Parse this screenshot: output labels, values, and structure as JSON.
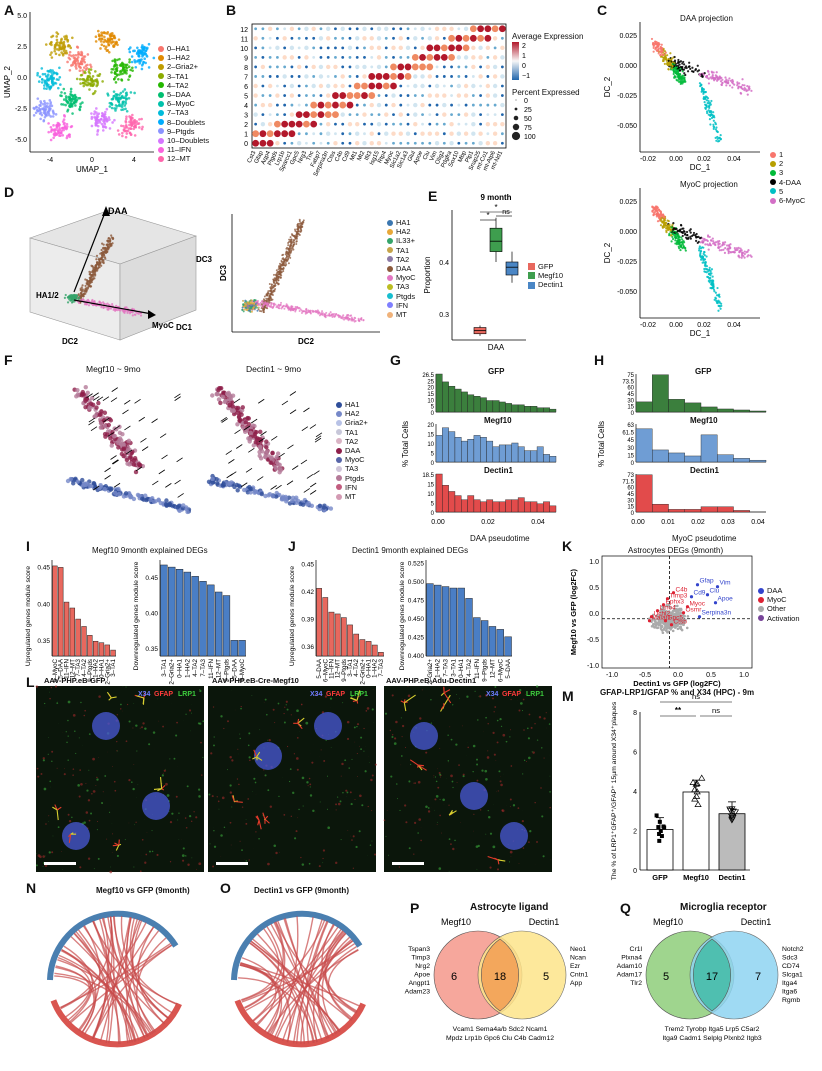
{
  "panels": {
    "A": {
      "label": "A",
      "xlabel": "UMAP_1",
      "ylabel": "UMAP_2",
      "xticks": [
        "-4",
        "0",
        "4"
      ],
      "yticks": [
        "5.0",
        "2.5",
        "0.0",
        "-2.5",
        "-5.0"
      ],
      "legend": [
        "0–HA1",
        "1–HA2",
        "2–Gria2+",
        "3–TA1",
        "4–TA2",
        "5–DAA",
        "6–MyoC",
        "7–TA3",
        "8–Doublets",
        "9–Ptgds",
        "10–Doublets",
        "11–IFN",
        "12–MT"
      ],
      "colors": [
        "#f8766d",
        "#e18a00",
        "#be9c00",
        "#8cab00",
        "#24b700",
        "#00be70",
        "#00c1ab",
        "#00bbda",
        "#00acfc",
        "#8b93ff",
        "#d575fe",
        "#f962dd",
        "#ff65ac"
      ]
    },
    "B": {
      "label": "B",
      "yticks": [
        "12",
        "11",
        "10",
        "9",
        "8",
        "7",
        "6",
        "5",
        "4",
        "3",
        "2",
        "1",
        "0"
      ],
      "genes": [
        "Cst3",
        "Gfap",
        "Aqp4",
        "Ptgds",
        "Lrp1b",
        "Sparcc1",
        "Gpc5",
        "Nrg3",
        "Tnc",
        "Fabp7",
        "Serpina3n",
        "Ctss",
        "C4b",
        "Cd9",
        "Mt1",
        "Mt2",
        "Ifit3",
        "Isg15",
        "Rtp4",
        "Myoc",
        "Slc1a2",
        "Slc1a3",
        "Glul",
        "Apoe",
        "Clu",
        "Vim",
        "Olig2",
        "Pdgfra",
        "Sox10",
        "Mbp",
        "Plp1",
        "Snap25",
        "mt-Co1",
        "mt-Atp6",
        "mt-Nd1"
      ],
      "legend_title1": "Average Expression",
      "scale_ticks": [
        "2",
        "1",
        "0",
        "−1"
      ],
      "legend_title2": "Percent Expressed",
      "pct": [
        "0",
        "25",
        "50",
        "75",
        "100"
      ]
    },
    "C": {
      "label": "C",
      "title1": "DAA projection",
      "title2": "MyoC projection",
      "xlabel": "DC_1",
      "ylabel": "DC_2",
      "xticks": [
        "-0.02",
        "0.00",
        "0.02",
        "0.04"
      ],
      "yticks": [
        "0.025",
        "0.000",
        "-0.025",
        "-0.050",
        "-0.075"
      ],
      "legend": [
        "1",
        "2",
        "3",
        "4-DAA",
        "5",
        "6-MyoC"
      ],
      "colors": [
        "#f8766d",
        "#b79f00",
        "#00ba38",
        "#000000",
        "#00bfc4",
        "#d36fc6"
      ]
    },
    "D": {
      "label": "D",
      "axis_daa": "DAA",
      "axis_ha": "HA1/2",
      "axis_myoc": "MyoC",
      "dc1": "DC1",
      "dc2": "DC2",
      "dc3": "DC3",
      "xlabel2": "DC2",
      "ylabel2": "DC3",
      "legend": [
        "HA1",
        "HA2",
        "IL33+",
        "TA1",
        "TA2",
        "DAA",
        "MyoC",
        "TA3",
        "Ptgds",
        "IFN",
        "MT"
      ],
      "colors": [
        "#3b77b0",
        "#e8a838",
        "#35a46a",
        "#c6a44a",
        "#8c7aa6",
        "#8c5a3c",
        "#e377c2",
        "#bcbd22",
        "#17becf",
        "#7f7fff",
        "#f0b27a"
      ]
    },
    "E": {
      "label": "E",
      "title": "9 month",
      "xlabel": "DAA",
      "ylabel": "Proportion",
      "yticks": [
        "0.4",
        "0.3"
      ],
      "sig": [
        "*",
        "*",
        "ns"
      ],
      "legend": [
        "GFP",
        "Megf10",
        "Dectin1"
      ],
      "colors": [
        "#e8685e",
        "#3e9e4e",
        "#4a86c5"
      ]
    },
    "F": {
      "label": "F",
      "title1": "Megf10 ~ 9mo",
      "title2": "Dectin1 ~ 9mo",
      "legend": [
        "HA1",
        "HA2",
        "Gria2+",
        "TA1",
        "TA2",
        "DAA",
        "MyoC",
        "TA3",
        "Ptgds",
        "IFN",
        "MT"
      ],
      "colors": [
        "#2f4e9a",
        "#7688c8",
        "#b8c2e6",
        "#c7c7d9",
        "#d9b3c4",
        "#8e1f4a",
        "#5765a8",
        "#cfc4d8",
        "#b47a98",
        "#c25c7f",
        "#d39ab3"
      ]
    },
    "G": {
      "label": "G",
      "title": "GFP",
      "t2": "Megf10",
      "t3": "Dectin1",
      "xlabel": "DAA pseudotime",
      "ylabel": "% Total Cells",
      "xticks": [
        "0.00",
        "0.02",
        "0.04"
      ],
      "ymax": [
        "26.5",
        "25",
        "20",
        "15",
        "10",
        "5",
        "0"
      ],
      "ymax2": [
        "20",
        "15",
        "10",
        "5",
        "0"
      ],
      "ymax3": [
        "18.5",
        "15",
        "10",
        "5",
        "0"
      ],
      "gfp": [
        26.5,
        21,
        18,
        16,
        14,
        12,
        11,
        10,
        8,
        8,
        7,
        6,
        5,
        5,
        4,
        4,
        3,
        3,
        2
      ],
      "megf10": [
        14,
        18,
        16,
        13,
        11,
        12,
        14,
        13,
        11,
        8,
        9,
        9,
        10,
        8,
        6,
        6,
        8,
        4,
        3
      ],
      "dectin1": [
        18.5,
        13,
        10,
        8,
        6,
        8,
        6,
        5,
        6,
        5,
        5,
        6,
        6,
        7,
        5,
        5,
        4,
        5,
        3
      ]
    },
    "H": {
      "label": "H",
      "title": "GFP",
      "t2": "Megf10",
      "t3": "Dectin1",
      "xlabel": "MyoC pseudotime",
      "ylabel": "% Total Cells",
      "xticks": [
        "0.00",
        "0.01",
        "0.02",
        "0.03",
        "0.04"
      ],
      "yticks1": [
        "75",
        "73.5",
        "60",
        "45",
        "30",
        "15",
        "0"
      ],
      "yticks2": [
        "63",
        "61.5",
        "45",
        "30",
        "15",
        "0"
      ],
      "yticks3": [
        "73",
        "71.5",
        "60",
        "45",
        "30",
        "15",
        "0"
      ],
      "gfp": [
        20,
        73.5,
        25,
        18,
        10,
        6,
        4,
        2
      ],
      "megf10": [
        55,
        20,
        15,
        10,
        45,
        12,
        6,
        3
      ],
      "dectin1": [
        71.5,
        15,
        5,
        5,
        10,
        10,
        3,
        0
      ]
    },
    "I": {
      "label": "I",
      "title": "Megf10 9month explained DEGs",
      "ylabel1": "Upregulated genes module score",
      "ylabel2": "Downregulated genes module score",
      "cats1": [
        "6–MyoC",
        "5–DAA",
        "11–IFN",
        "12–MT",
        "7–TA3",
        "4–TA2",
        "9–Ptgds",
        "1–HA2",
        "0–HA1",
        "2–Gria2+",
        "3–TA1"
      ],
      "vals1": [
        0.452,
        0.45,
        0.403,
        0.395,
        0.38,
        0.37,
        0.358,
        0.35,
        0.348,
        0.345,
        0.338
      ],
      "yt1": [
        "0.45",
        "0.40",
        "0.35"
      ],
      "cats2": [
        "3–TA1",
        "2–Gria2+",
        "0–HA1",
        "1–HA2",
        "4–TA2",
        "7–TA3",
        "11–IFN",
        "12–MT",
        "9–Ptgds",
        "5–DAA",
        "6–MyoC"
      ],
      "vals2": [
        0.468,
        0.465,
        0.462,
        0.458,
        0.452,
        0.445,
        0.44,
        0.43,
        0.425,
        0.362,
        0.362
      ],
      "yt2": [
        "0.45",
        "0.40",
        "0.35"
      ]
    },
    "J": {
      "label": "J",
      "title": "Dectin1 9month explained DEGs",
      "ylabel1": "Upregulated genes module score",
      "ylabel2": "Downregulated genes module score",
      "cats1": [
        "5–DAA",
        "6–MyoC",
        "11–IFN",
        "12–MT",
        "9–Ptgds",
        "3–TA1",
        "4–TA2",
        "2–Gria2+",
        "0–HA1",
        "1–HA2",
        "7–TA3"
      ],
      "vals1": [
        0.424,
        0.414,
        0.398,
        0.396,
        0.392,
        0.384,
        0.374,
        0.368,
        0.366,
        0.362,
        0.354
      ],
      "yt1": [
        "0.45",
        "0.42",
        "0.39",
        "0.36"
      ],
      "cats2": [
        "2–Gria2+",
        "1–HA2",
        "7–TA3",
        "3–TA1",
        "0–HA1",
        "4–TA2",
        "11–IFN",
        "9–Ptgds",
        "12–MT",
        "6–MyoC",
        "5–DAA"
      ],
      "vals2": [
        0.498,
        0.496,
        0.494,
        0.492,
        0.492,
        0.478,
        0.452,
        0.448,
        0.44,
        0.436,
        0.426
      ],
      "yt2": [
        "0.525",
        "0.500",
        "0.475",
        "0.450",
        "0.425",
        "0.400"
      ]
    },
    "K": {
      "label": "K",
      "title": "Astrocytes DEGs (9month)",
      "xlabel": "Dectin1 vs GFP (log2FC)",
      "ylabel": "Megf10 vs GFP (log2FC)",
      "xticks": [
        "-1.0",
        "-0.5",
        "0.0",
        "0.5",
        "1.0"
      ],
      "yticks": [
        "1.0",
        "0.5",
        "0.0",
        "-0.5",
        "-1.0"
      ],
      "genes_blue": [
        "Gfap",
        "Vim",
        "Cd9",
        "Clu",
        "Apoe",
        "Serpina3n"
      ],
      "genes_red": [
        "C4b",
        "Timp3",
        "Ephx3",
        "Lmo4",
        "Uchl2",
        "Malat1",
        "Myoc",
        "Osmr",
        "Ctsb",
        "Gpc5"
      ],
      "legend": [
        "DAA",
        "MyoC",
        "Other",
        "Activation"
      ],
      "colors": [
        "#3344cc",
        "#dd2233",
        "#aaaaaa",
        "#774499"
      ]
    },
    "L": {
      "label": "L",
      "t1": "AAV-PHP.eB-GFP",
      "t2": "AAV-PHP.eB-Cre-Megf10",
      "t3": "AAV-PHP.eB-Adu-Dectin1",
      "ch1": "X34",
      "ch2": "GFAP",
      "ch3": "LRP1"
    },
    "M": {
      "label": "M",
      "title": "GFAP-LRP1/GFAP % and X34 (HPC) - 9m",
      "ylabel": "The % of LRP1⁺GFAP⁺/GFAP⁺ 15µm around X34⁺plaques",
      "cats": [
        "GFP",
        "Megf10",
        "Dectin1"
      ],
      "means": [
        2.05,
        3.95,
        2.85
      ],
      "sig": [
        "ns",
        "**",
        "ns"
      ],
      "yticks": [
        "8",
        "6",
        "4",
        "2",
        "0"
      ]
    },
    "N": {
      "label": "N",
      "title": "Megf10 vs GFP (9month)"
    },
    "O": {
      "label": "O",
      "title": "Dectin1 vs GFP (9month)"
    },
    "P": {
      "label": "P",
      "title": "Astrocyte ligand",
      "left": "Megf10",
      "right": "Dectin1",
      "n_left": "6",
      "n_mid": "18",
      "n_right": "5",
      "left_genes": [
        "Tspan3",
        "Timp3",
        "Nrg2",
        "Apoe",
        "Angpt1",
        "Adam23"
      ],
      "right_genes": [
        "Neo1",
        "Ncan",
        "Ezr",
        "Cntn1",
        "App"
      ],
      "mid_genes": [
        "Vcam1  Sema4a/b  Sdc2  Ncam1",
        "Mpdz  Lrp1b  Gpc6  Clu  C4b  Cadm12"
      ]
    },
    "Q": {
      "label": "Q",
      "title": "Microglia receptor",
      "left": "Megf10",
      "right": "Dectin1",
      "n_left": "5",
      "n_mid": "17",
      "n_right": "7",
      "left_genes": [
        "Cr1l",
        "Plxna4",
        "Adam10",
        "Adam17",
        "Tlr2"
      ],
      "right_genes": [
        "Notch2",
        "Sdc3",
        "CD74",
        "Slcga1",
        "Itga4",
        "Itga6",
        "Rgmb"
      ],
      "mid_genes": [
        "Trem2  Tyrobp  Itga5  Lrp5  C5ar2",
        "Itga9  Cadm1  Selplg  Plxnb2  Itgb3"
      ]
    }
  }
}
